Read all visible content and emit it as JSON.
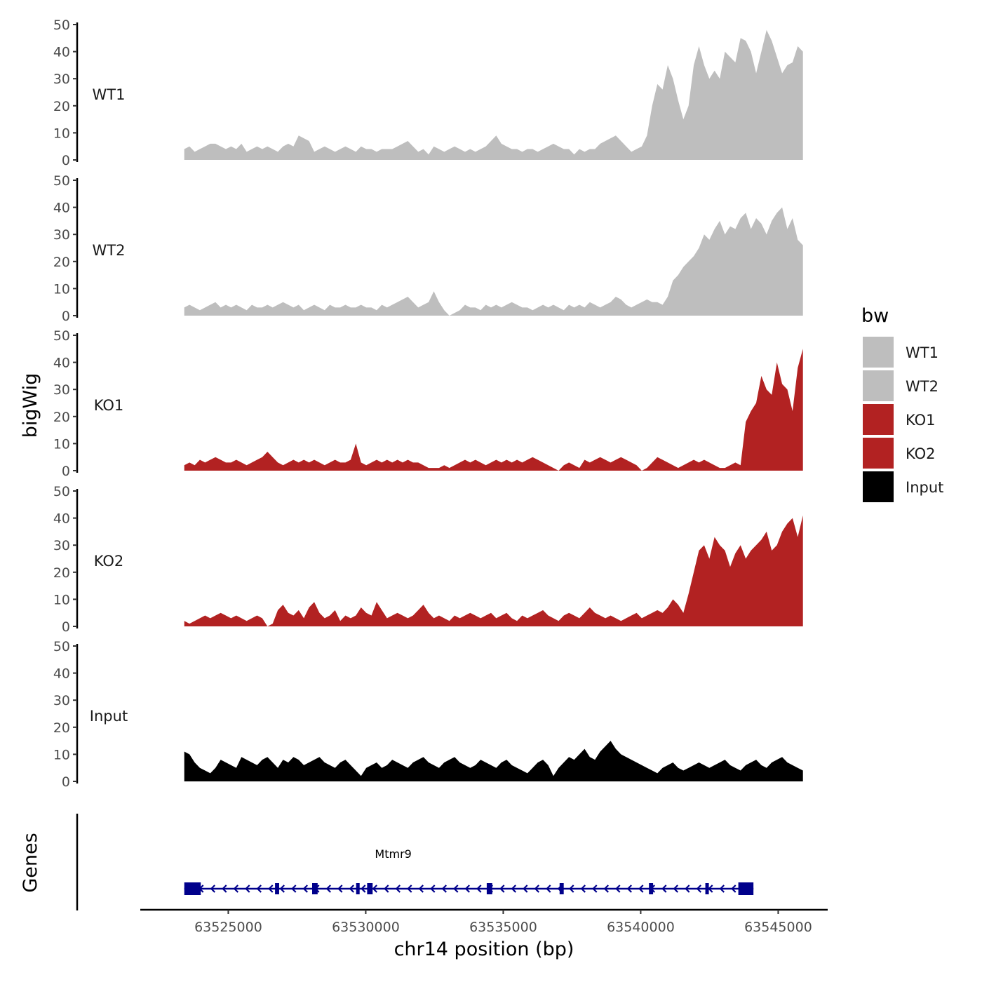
{
  "chart_data": {
    "type": "area",
    "chromosome": "chr14",
    "xlabel": "chr14 position (bp)",
    "ylabel": "bigWig",
    "genes_label": "Genes",
    "xlim": [
      63521800,
      63546800
    ],
    "data_range": [
      63523400,
      63545900
    ],
    "x_ticks": [
      63525000,
      63530000,
      63535000,
      63540000,
      63545000
    ],
    "x_tick_labels": [
      "63525000",
      "63530000",
      "63535000",
      "63540000",
      "63545000"
    ],
    "ylim": [
      0,
      50
    ],
    "y_ticks": [
      0,
      10,
      20,
      30,
      40,
      50
    ],
    "y_tick_labels": [
      "0",
      "10",
      "20",
      "30",
      "40",
      "50"
    ],
    "legend": {
      "title": "bw",
      "position": "right",
      "entries": [
        {
          "label": "WT1",
          "color": "#bebebe"
        },
        {
          "label": "WT2",
          "color": "#bebebe"
        },
        {
          "label": "KO1",
          "color": "#b22222"
        },
        {
          "label": "KO2",
          "color": "#b22222"
        },
        {
          "label": "Input",
          "color": "#000000"
        }
      ]
    },
    "tracks": [
      {
        "name": "WT1",
        "color": "#bebebe",
        "values": [
          4,
          5,
          3,
          4,
          5,
          6,
          6,
          5,
          4,
          5,
          4,
          6,
          3,
          4,
          5,
          4,
          5,
          4,
          3,
          5,
          6,
          5,
          9,
          8,
          7,
          3,
          4,
          5,
          4,
          3,
          4,
          5,
          4,
          3,
          5,
          4,
          4,
          3,
          4,
          4,
          4,
          5,
          6,
          7,
          5,
          3,
          4,
          2,
          5,
          4,
          3,
          4,
          5,
          4,
          3,
          4,
          3,
          4,
          5,
          7,
          9,
          6,
          5,
          4,
          4,
          3,
          4,
          4,
          3,
          4,
          5,
          6,
          5,
          4,
          4,
          2,
          4,
          3,
          4,
          4,
          6,
          7,
          8,
          9,
          7,
          5,
          3,
          4,
          5,
          9,
          20,
          28,
          26,
          35,
          30,
          22,
          15,
          20,
          35,
          42,
          35,
          30,
          33,
          30,
          40,
          38,
          36,
          45,
          44,
          40,
          32,
          40,
          48,
          44,
          38,
          32,
          35,
          36,
          42,
          40
        ]
      },
      {
        "name": "WT2",
        "color": "#bebebe",
        "values": [
          3,
          4,
          3,
          2,
          3,
          4,
          5,
          3,
          4,
          3,
          4,
          3,
          2,
          4,
          3,
          3,
          4,
          3,
          4,
          5,
          4,
          3,
          4,
          2,
          3,
          4,
          3,
          2,
          4,
          3,
          3,
          4,
          3,
          3,
          4,
          3,
          3,
          2,
          4,
          3,
          4,
          5,
          6,
          7,
          5,
          3,
          4,
          5,
          9,
          5,
          2,
          0,
          1,
          2,
          4,
          3,
          3,
          2,
          4,
          3,
          4,
          3,
          4,
          5,
          4,
          3,
          3,
          2,
          3,
          4,
          3,
          4,
          3,
          2,
          4,
          3,
          4,
          3,
          5,
          4,
          3,
          4,
          5,
          7,
          6,
          4,
          3,
          4,
          5,
          6,
          5,
          5,
          4,
          7,
          13,
          15,
          18,
          20,
          22,
          25,
          30,
          28,
          32,
          35,
          30,
          33,
          32,
          36,
          38,
          32,
          36,
          34,
          30,
          35,
          38,
          40,
          32,
          36,
          28,
          26
        ]
      },
      {
        "name": "KO1",
        "color": "#b22222",
        "values": [
          2,
          3,
          2,
          4,
          3,
          4,
          5,
          4,
          3,
          3,
          4,
          3,
          2,
          3,
          4,
          5,
          7,
          5,
          3,
          2,
          3,
          4,
          3,
          4,
          3,
          4,
          3,
          2,
          3,
          4,
          3,
          3,
          4,
          10,
          3,
          2,
          3,
          4,
          3,
          4,
          3,
          4,
          3,
          4,
          3,
          3,
          2,
          1,
          1,
          1,
          2,
          1,
          2,
          3,
          4,
          3,
          4,
          3,
          2,
          3,
          4,
          3,
          4,
          3,
          4,
          3,
          4,
          5,
          4,
          3,
          2,
          1,
          0,
          2,
          3,
          2,
          1,
          4,
          3,
          4,
          5,
          4,
          3,
          4,
          5,
          4,
          3,
          2,
          0,
          1,
          3,
          5,
          4,
          3,
          2,
          1,
          2,
          3,
          4,
          3,
          4,
          3,
          2,
          1,
          1,
          2,
          3,
          2,
          18,
          22,
          25,
          35,
          30,
          28,
          40,
          32,
          30,
          22,
          38,
          45
        ]
      },
      {
        "name": "KO2",
        "color": "#b22222",
        "values": [
          2,
          1,
          2,
          3,
          4,
          3,
          4,
          5,
          4,
          3,
          4,
          3,
          2,
          3,
          4,
          3,
          0,
          1,
          6,
          8,
          5,
          4,
          6,
          3,
          7,
          9,
          5,
          3,
          4,
          6,
          2,
          4,
          3,
          4,
          7,
          5,
          4,
          9,
          6,
          3,
          4,
          5,
          4,
          3,
          4,
          6,
          8,
          5,
          3,
          4,
          3,
          2,
          4,
          3,
          4,
          5,
          4,
          3,
          4,
          5,
          3,
          4,
          5,
          3,
          2,
          4,
          3,
          4,
          5,
          6,
          4,
          3,
          2,
          4,
          5,
          4,
          3,
          5,
          7,
          5,
          4,
          3,
          4,
          3,
          2,
          3,
          4,
          5,
          3,
          4,
          5,
          6,
          5,
          7,
          10,
          8,
          5,
          12,
          20,
          28,
          30,
          25,
          33,
          30,
          28,
          22,
          27,
          30,
          25,
          28,
          30,
          32,
          35,
          28,
          30,
          35,
          38,
          40,
          33,
          41
        ]
      },
      {
        "name": "Input",
        "color": "#000000",
        "values": [
          11,
          10,
          7,
          5,
          4,
          3,
          5,
          8,
          7,
          6,
          5,
          9,
          8,
          7,
          6,
          8,
          9,
          7,
          5,
          8,
          7,
          9,
          8,
          6,
          7,
          8,
          9,
          7,
          6,
          5,
          7,
          8,
          6,
          4,
          2,
          5,
          6,
          7,
          5,
          6,
          8,
          7,
          6,
          5,
          7,
          8,
          9,
          7,
          6,
          5,
          7,
          8,
          9,
          7,
          6,
          5,
          6,
          8,
          7,
          6,
          5,
          7,
          8,
          6,
          5,
          4,
          3,
          5,
          7,
          8,
          6,
          2,
          5,
          7,
          9,
          8,
          10,
          12,
          9,
          8,
          11,
          13,
          15,
          12,
          10,
          9,
          8,
          7,
          6,
          5,
          4,
          3,
          5,
          6,
          7,
          5,
          4,
          5,
          6,
          7,
          6,
          5,
          6,
          7,
          8,
          6,
          5,
          4,
          6,
          7,
          8,
          6,
          5,
          7,
          8,
          9,
          7,
          6,
          5,
          4
        ]
      }
    ],
    "gene": {
      "name": "Mtmr9",
      "strand": "-",
      "start": 63523400,
      "end": 63544100,
      "exons": [
        [
          63523400,
          63524000
        ],
        [
          63526700,
          63526850
        ],
        [
          63528050,
          63528250
        ],
        [
          63529650,
          63529750
        ],
        [
          63530050,
          63530250
        ],
        [
          63534400,
          63534600
        ],
        [
          63537050,
          63537200
        ],
        [
          63540300,
          63540450
        ],
        [
          63542350,
          63542450
        ],
        [
          63543550,
          63544100
        ]
      ]
    }
  }
}
